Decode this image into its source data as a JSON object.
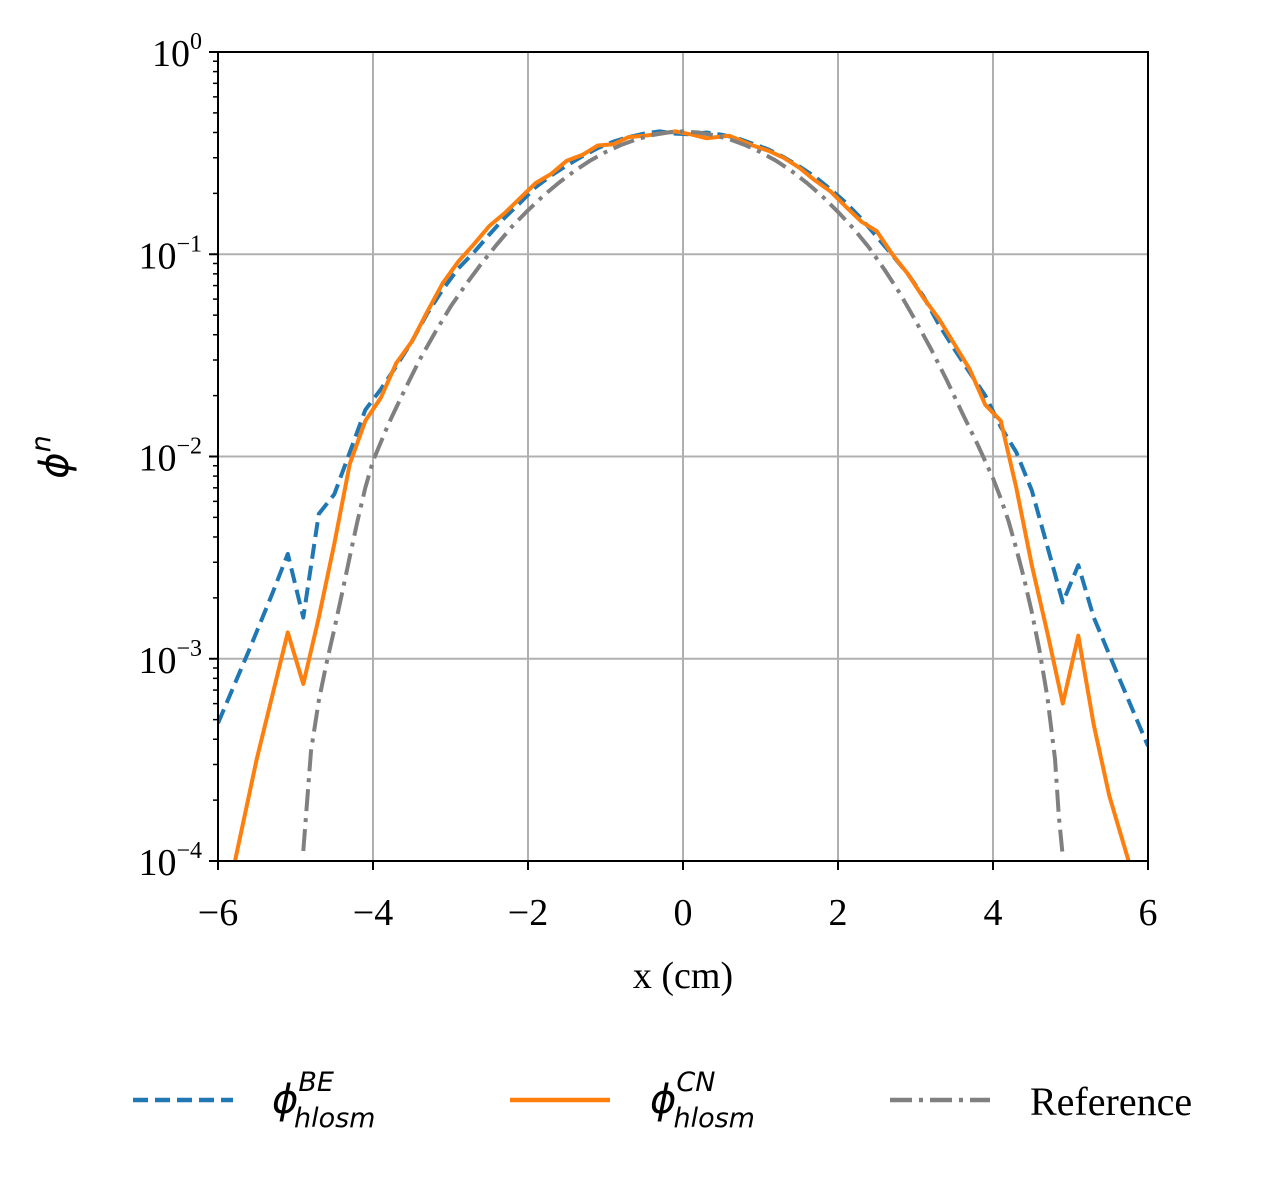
{
  "chart_data": {
    "type": "line",
    "xlabel": "x (cm)",
    "ylabel": {
      "base": "ϕ",
      "sup": "n"
    },
    "xlim": [
      -6,
      6
    ],
    "ylim": [
      0.0001,
      1
    ],
    "yscale": "log",
    "grid": true,
    "legend_placement": "bottom-center-outside",
    "x_ticks": [
      {
        "value": -6,
        "label": "−6"
      },
      {
        "value": -4,
        "label": "−4"
      },
      {
        "value": -2,
        "label": "−2"
      },
      {
        "value": 0,
        "label": "0"
      },
      {
        "value": 2,
        "label": "2"
      },
      {
        "value": 4,
        "label": "4"
      },
      {
        "value": 6,
        "label": "6"
      }
    ],
    "y_ticks": [
      {
        "value": 1,
        "base": "10",
        "exp": "0"
      },
      {
        "value": 0.1,
        "base": "10",
        "exp": "−1"
      },
      {
        "value": 0.01,
        "base": "10",
        "exp": "−2"
      },
      {
        "value": 0.001,
        "base": "10",
        "exp": "−3"
      },
      {
        "value": 0.0001,
        "base": "10",
        "exp": "−4"
      }
    ],
    "series": [
      {
        "name": "ϕ_hlosm^BE",
        "legend_base": "ϕ",
        "legend_sub": "hlosm",
        "legend_sup": "BE",
        "color": "#1f77b4",
        "dash": "dashed",
        "x": [
          -6.0,
          -5.6,
          -5.3,
          -5.1,
          -4.9,
          -4.7,
          -4.5,
          -4.3,
          -4.1,
          -3.9,
          -3.7,
          -3.5,
          -3.3,
          -3.1,
          -2.9,
          -2.7,
          -2.5,
          -2.3,
          -2.1,
          -1.9,
          -1.7,
          -1.5,
          -1.3,
          -1.1,
          -0.9,
          -0.7,
          -0.5,
          -0.3,
          -0.1,
          0.1,
          0.3,
          0.5,
          0.7,
          0.9,
          1.1,
          1.3,
          1.5,
          1.7,
          1.9,
          2.1,
          2.3,
          2.5,
          2.7,
          2.9,
          3.1,
          3.3,
          3.5,
          3.7,
          3.9,
          4.1,
          4.3,
          4.5,
          4.7,
          4.9,
          5.1,
          5.3,
          5.6,
          6.0
        ],
        "y": [
          0.00048,
          0.0011,
          0.0021,
          0.0033,
          0.0016,
          0.0052,
          0.0065,
          0.0105,
          0.017,
          0.0215,
          0.028,
          0.037,
          0.051,
          0.067,
          0.085,
          0.102,
          0.125,
          0.152,
          0.18,
          0.215,
          0.245,
          0.275,
          0.305,
          0.335,
          0.36,
          0.38,
          0.395,
          0.405,
          0.395,
          0.392,
          0.4,
          0.39,
          0.375,
          0.352,
          0.33,
          0.302,
          0.272,
          0.242,
          0.21,
          0.18,
          0.15,
          0.122,
          0.099,
          0.08,
          0.062,
          0.045,
          0.034,
          0.026,
          0.02,
          0.014,
          0.0105,
          0.0068,
          0.0036,
          0.0019,
          0.0029,
          0.0016,
          0.00085,
          0.00037
        ]
      },
      {
        "name": "ϕ_hlosm^CN",
        "legend_base": "ϕ",
        "legend_sub": "hlosm",
        "legend_sup": "CN",
        "color": "#ff7f0e",
        "dash": "solid",
        "x": [
          -5.78,
          -5.5,
          -5.1,
          -4.9,
          -4.7,
          -4.5,
          -4.3,
          -4.1,
          -3.9,
          -3.7,
          -3.5,
          -3.3,
          -3.1,
          -2.9,
          -2.7,
          -2.5,
          -2.3,
          -2.1,
          -1.9,
          -1.7,
          -1.5,
          -1.3,
          -1.1,
          -0.9,
          -0.7,
          -0.5,
          -0.3,
          -0.1,
          0.1,
          0.3,
          0.6,
          0.9,
          1.1,
          1.3,
          1.5,
          1.7,
          1.9,
          2.1,
          2.3,
          2.5,
          2.7,
          2.9,
          3.1,
          3.3,
          3.5,
          3.7,
          3.9,
          4.1,
          4.3,
          4.5,
          4.7,
          4.9,
          5.1,
          5.3,
          5.5,
          5.75
        ],
        "y": [
          0.0001,
          0.00032,
          0.00135,
          0.00075,
          0.0016,
          0.0037,
          0.0092,
          0.015,
          0.0195,
          0.029,
          0.037,
          0.052,
          0.072,
          0.092,
          0.112,
          0.138,
          0.16,
          0.19,
          0.225,
          0.25,
          0.29,
          0.31,
          0.345,
          0.35,
          0.38,
          0.385,
          0.395,
          0.405,
          0.392,
          0.375,
          0.385,
          0.345,
          0.325,
          0.3,
          0.268,
          0.232,
          0.205,
          0.172,
          0.145,
          0.13,
          0.1,
          0.08,
          0.061,
          0.048,
          0.036,
          0.027,
          0.018,
          0.015,
          0.007,
          0.0029,
          0.00135,
          0.0006,
          0.0013,
          0.00047,
          0.00021,
          0.0001
        ]
      },
      {
        "name": "Reference",
        "color": "#808080",
        "dash": "dashdot",
        "x": [
          -4.9,
          -4.8,
          -4.7,
          -4.6,
          -4.5,
          -4.4,
          -4.3,
          -4.2,
          -4.1,
          -4.0,
          -3.8,
          -3.6,
          -3.4,
          -3.2,
          -3.0,
          -2.8,
          -2.6,
          -2.4,
          -2.2,
          -2.0,
          -1.8,
          -1.6,
          -1.4,
          -1.2,
          -1.0,
          -0.8,
          -0.6,
          -0.4,
          -0.2,
          0.0,
          0.2,
          0.4,
          0.6,
          0.8,
          1.0,
          1.2,
          1.4,
          1.6,
          1.8,
          2.0,
          2.2,
          2.4,
          2.6,
          2.8,
          3.0,
          3.2,
          3.4,
          3.6,
          3.8,
          4.0,
          4.1,
          4.2,
          4.3,
          4.4,
          4.5,
          4.6,
          4.7,
          4.8,
          4.85,
          4.9
        ],
        "y": [
          0.000112,
          0.00035,
          0.00062,
          0.00095,
          0.0014,
          0.0021,
          0.0032,
          0.0048,
          0.007,
          0.0095,
          0.0145,
          0.021,
          0.03,
          0.041,
          0.055,
          0.071,
          0.09,
          0.112,
          0.138,
          0.165,
          0.195,
          0.226,
          0.258,
          0.29,
          0.32,
          0.347,
          0.37,
          0.388,
          0.4,
          0.405,
          0.4,
          0.388,
          0.37,
          0.347,
          0.32,
          0.29,
          0.258,
          0.225,
          0.193,
          0.162,
          0.134,
          0.108,
          0.084,
          0.064,
          0.047,
          0.034,
          0.024,
          0.0165,
          0.0115,
          0.0078,
          0.0062,
          0.0048,
          0.0035,
          0.0025,
          0.0017,
          0.0011,
          0.00065,
          0.00032,
          0.000165,
          0.000105
        ]
      }
    ]
  }
}
